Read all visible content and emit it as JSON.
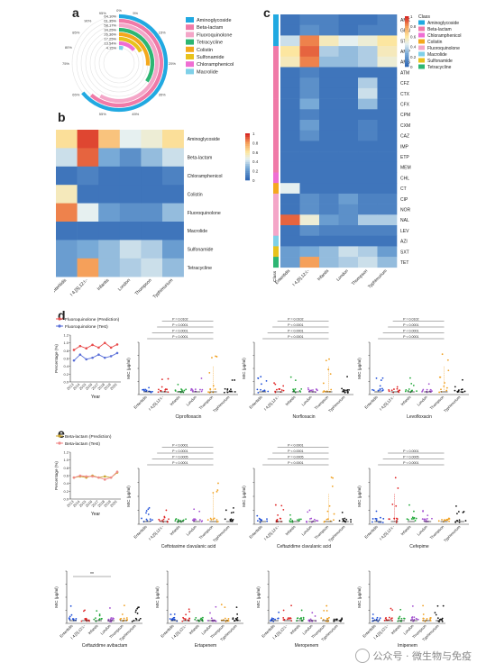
{
  "labels": {
    "a": "a",
    "b": "b",
    "c": "c",
    "d": "d",
    "e": "e"
  },
  "colors": {
    "Aminoglycoside": "#21a9e1",
    "Beta-lactam": "#f07aa8",
    "Fluoroquinolone": "#f4a6c8",
    "Tetracycline": "#2db673",
    "Colistin": "#f4a81d",
    "Sulfonamide": "#e8c21c",
    "Chloramphenicol": "#ef6ed3",
    "Macrolide": "#7fd0e8",
    "ser_enteritidis": "#1f4fd8",
    "ser_i4512": "#e02424",
    "ser_infantis": "#22a83a",
    "ser_london": "#a34fd0",
    "ser_thompson": "#f0a020",
    "ser_typhimurium": "#111111"
  },
  "panel_a": {
    "legend": [
      "Aminoglycoside",
      "Beta-lactam",
      "Fluoroquinolone",
      "Tetracycline",
      "Colistin",
      "Sulfonamide",
      "Chloramphenicol",
      "Macrolide"
    ],
    "percent_labels": [
      "64.10%",
      "61.35%",
      "58.17%",
      "34.25%",
      "26.36%",
      "17.25%",
      "13.54%",
      "4.15%"
    ],
    "ticks": [
      "0%",
      "5%",
      "15%",
      "25%",
      "35%",
      "45%",
      "50%",
      "55%",
      "65%",
      "75%",
      "80%",
      "85%",
      "90%",
      "95%"
    ]
  },
  "panel_b": {
    "rows": [
      "Aminoglycoside",
      "Beta-lactam",
      "Chloramphenicol",
      "Colistin",
      "Fluoroquinolone",
      "Macrolide",
      "Sulfonamide",
      "Tetracycline"
    ],
    "cols": [
      "Enteritidis",
      "I 4,[5],12:i:-",
      "Infantis",
      "London",
      "Thompson",
      "Typhimurium"
    ],
    "scale_ticks": [
      "1",
      "0.8",
      "0.6",
      "0.4",
      "0.2",
      "0"
    ],
    "values": [
      [
        0.62,
        0.95,
        0.7,
        0.45,
        0.5,
        0.62
      ],
      [
        0.4,
        0.9,
        0.25,
        0.15,
        0.3,
        0.4
      ],
      [
        0.05,
        0.1,
        0.05,
        0.05,
        0.05,
        0.1
      ],
      [
        0.55,
        0.05,
        0.05,
        0.05,
        0.05,
        0.05
      ],
      [
        0.85,
        0.45,
        0.2,
        0.15,
        0.15,
        0.3
      ],
      [
        0.05,
        0.05,
        0.05,
        0.05,
        0.05,
        0.05
      ],
      [
        0.2,
        0.25,
        0.3,
        0.4,
        0.35,
        0.2
      ],
      [
        0.2,
        0.8,
        0.3,
        0.35,
        0.4,
        0.3
      ]
    ]
  },
  "panel_c": {
    "rows": [
      "AMK",
      "GEN",
      "STR",
      "AMP",
      "AMS",
      "ATM",
      "CFZ",
      "CTX",
      "CFX",
      "CPM",
      "CXM",
      "CAZ",
      "IMP",
      "ETP",
      "MEM",
      "CHL",
      "CT",
      "CIP",
      "NOR",
      "NAL",
      "LEV",
      "AZI",
      "SXT",
      "TET"
    ],
    "row_class": [
      "Aminoglycoside",
      "Aminoglycoside",
      "Aminoglycoside",
      "Beta-lactam",
      "Beta-lactam",
      "Beta-lactam",
      "Beta-lactam",
      "Beta-lactam",
      "Beta-lactam",
      "Beta-lactam",
      "Beta-lactam",
      "Beta-lactam",
      "Beta-lactam",
      "Beta-lactam",
      "Beta-lactam",
      "Chloramphenicol",
      "Colistin",
      "Fluoroquinolone",
      "Fluoroquinolone",
      "Fluoroquinolone",
      "Fluoroquinolone",
      "Macrolide",
      "Sulfonamide",
      "Tetracycline"
    ],
    "cols": [
      "Enteritidis",
      "I 4,[5],12:i:-",
      "Infantis",
      "London",
      "Thompson",
      "Typhimurium"
    ],
    "class_header": "Class",
    "legend_title": "Class",
    "legend": [
      "Aminoglycoside",
      "Beta-lactam",
      "Chloramphenicol",
      "Colistin",
      "Fluoroquinolone",
      "Macrolide",
      "Sulfonamide",
      "Tetracycline"
    ],
    "scale_ticks": [
      "1",
      "0.8",
      "0.6",
      "0.4",
      "0.2",
      "0"
    ],
    "values": [
      [
        0.05,
        0.1,
        0.1,
        0.05,
        0.05,
        0.1
      ],
      [
        0.05,
        0.15,
        0.1,
        0.05,
        0.1,
        0.1
      ],
      [
        0.4,
        0.85,
        0.55,
        0.45,
        0.5,
        0.6
      ],
      [
        0.6,
        0.9,
        0.35,
        0.3,
        0.35,
        0.55
      ],
      [
        0.55,
        0.85,
        0.3,
        0.3,
        0.35,
        0.5
      ],
      [
        0.05,
        0.1,
        0.05,
        0.05,
        0.05,
        0.05
      ],
      [
        0.05,
        0.15,
        0.05,
        0.05,
        0.35,
        0.05
      ],
      [
        0.05,
        0.15,
        0.05,
        0.05,
        0.4,
        0.05
      ],
      [
        0.05,
        0.25,
        0.05,
        0.05,
        0.3,
        0.05
      ],
      [
        0.05,
        0.1,
        0.05,
        0.05,
        0.05,
        0.05
      ],
      [
        0.05,
        0.2,
        0.05,
        0.05,
        0.1,
        0.05
      ],
      [
        0.05,
        0.15,
        0.05,
        0.05,
        0.1,
        0.05
      ],
      [
        0.05,
        0.05,
        0.05,
        0.05,
        0.05,
        0.05
      ],
      [
        0.05,
        0.05,
        0.05,
        0.05,
        0.05,
        0.05
      ],
      [
        0.05,
        0.05,
        0.05,
        0.05,
        0.05,
        0.05
      ],
      [
        0.05,
        0.05,
        0.05,
        0.05,
        0.05,
        0.05
      ],
      [
        0.45,
        0.05,
        0.05,
        0.05,
        0.05,
        0.05
      ],
      [
        0.05,
        0.15,
        0.1,
        0.2,
        0.1,
        0.1
      ],
      [
        0.05,
        0.15,
        0.1,
        0.15,
        0.1,
        0.1
      ],
      [
        0.9,
        0.5,
        0.2,
        0.15,
        0.35,
        0.35
      ],
      [
        0.05,
        0.15,
        0.1,
        0.1,
        0.1,
        0.1
      ],
      [
        0.05,
        0.05,
        0.05,
        0.05,
        0.05,
        0.05
      ],
      [
        0.2,
        0.25,
        0.3,
        0.4,
        0.35,
        0.2
      ],
      [
        0.2,
        0.8,
        0.3,
        0.35,
        0.4,
        0.3
      ]
    ]
  },
  "panel_d": {
    "legend": [
      "Fluoroquinolone (Prediction)",
      "Fluoroquinolone (Test)"
    ],
    "ylabel": "Percentage (%)",
    "xlabel": "Year",
    "years": [
      "2013",
      "2014",
      "2015",
      "2016",
      "2017",
      "2018",
      "2019",
      "2020"
    ],
    "yticks": [
      "0.0",
      "0.2",
      "0.4",
      "0.6",
      "0.8",
      "1.0",
      "1.2"
    ],
    "series": [
      {
        "values": [
          0.82,
          0.92,
          0.86,
          0.95,
          0.88,
          1.0,
          0.88,
          0.96
        ]
      },
      {
        "values": [
          0.55,
          0.7,
          0.58,
          0.62,
          0.7,
          0.62,
          0.66,
          0.74
        ]
      }
    ],
    "mic_ylabel": "MIC (μg/ml)",
    "drugs": [
      "Ciprofloxacin",
      "Norfloxacin",
      "Levofloxacin"
    ],
    "pvals": [
      "P < 0.0001",
      "P < 0.0001",
      "P < 0.0001",
      "P = 0.0102"
    ],
    "stars": [
      "****",
      "***",
      "****"
    ]
  },
  "panel_e": {
    "legend": [
      "Beta-lactam (Prediction)",
      "Beta-lactam (Test)"
    ],
    "ylabel": "Percentage (%)",
    "xlabel": "Year",
    "years": [
      "2013",
      "2014",
      "2015",
      "2016",
      "2017",
      "2018",
      "2019",
      "2020"
    ],
    "yticks": [
      "0.0",
      "0.2",
      "0.4",
      "0.6",
      "0.8",
      "1.0",
      "1.2"
    ],
    "series": [
      {
        "values": [
          0.55,
          0.58,
          0.55,
          0.6,
          0.55,
          0.58,
          0.55,
          0.68
        ]
      },
      {
        "values": [
          0.55,
          0.6,
          0.58,
          0.58,
          0.55,
          0.5,
          0.55,
          0.7
        ]
      }
    ],
    "mic_ylabel": "MIC (μg/ml)",
    "drugs_top": [
      "Ceftotaxime clavulanic acid",
      "Ceftazidime clavulanic acid",
      "Cefepime"
    ],
    "drugs_bottom": [
      "Ceftazidime avibactam",
      "Ertapenem",
      "Meropenem",
      "Imipenem"
    ],
    "pvals": [
      "P < 0.0001",
      "P = 0.0005",
      "P < 0.0001"
    ],
    "star_sig": "**"
  },
  "serovars": [
    "Enteritidis",
    "I 4,[5],12:i:-",
    "Infantis",
    "London",
    "Thompson",
    "Typhimurium"
  ],
  "watermark": "公众号 · 微生物与免疫"
}
